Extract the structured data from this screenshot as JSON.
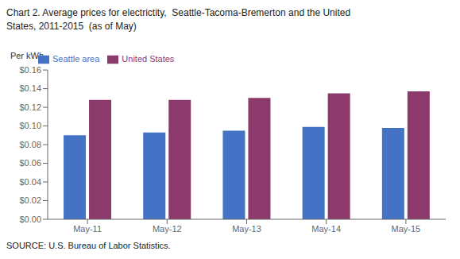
{
  "chart_data": {
    "type": "bar",
    "title": "Chart 2. Average prices for electrictity,  Seattle-Tacoma-Bremerton and the United\nStates, 2011-2015  (as of May)",
    "ylabel": "Per kWh",
    "source": "SOURCE: U.S. Bureau of Labor Statistics.",
    "categories": [
      "May-11",
      "May-12",
      "May-13",
      "May-14",
      "May-15"
    ],
    "series": [
      {
        "name": "Seattle area",
        "color": "#4472C4",
        "values": [
          0.09,
          0.093,
          0.095,
          0.099,
          0.098
        ]
      },
      {
        "name": "United States",
        "color": "#8B3A6B",
        "values": [
          0.128,
          0.128,
          0.13,
          0.135,
          0.137
        ]
      }
    ],
    "ylim": [
      0,
      0.16
    ],
    "yticks": [
      {
        "value": 0.0,
        "label": "$0.00"
      },
      {
        "value": 0.02,
        "label": "$0.02"
      },
      {
        "value": 0.04,
        "label": "$0.04"
      },
      {
        "value": 0.06,
        "label": "$0.06"
      },
      {
        "value": 0.08,
        "label": "$0.08"
      },
      {
        "value": 0.1,
        "label": "$0.10"
      },
      {
        "value": 0.12,
        "label": "$0.12"
      },
      {
        "value": 0.14,
        "label": "$0.14"
      },
      {
        "value": 0.16,
        "label": "$0.16"
      }
    ],
    "grid": false,
    "legend": "upper left"
  }
}
